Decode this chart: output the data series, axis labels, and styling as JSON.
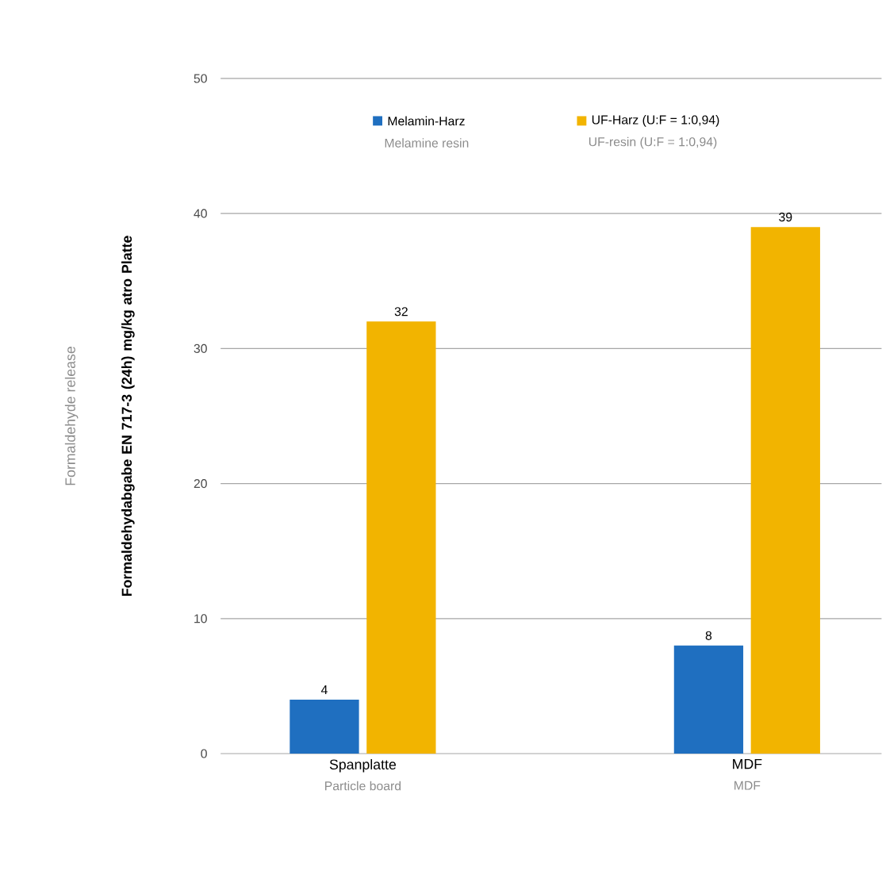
{
  "chart_data": {
    "type": "bar",
    "ylabel": "Formaldehydabgabe EN 717-3 (24h) mg/kg atro Platte",
    "categories": [
      "Spanplatte",
      "MDF"
    ],
    "series": [
      {
        "name": "Melamin-Harz",
        "color": "#1f6fc0",
        "values": [
          4,
          8
        ]
      },
      {
        "name": "UF-Harz (U:F = 1:0,94)",
        "color": "#f2b400",
        "values": [
          32,
          39
        ]
      }
    ],
    "annotations": [
      "Melamine resin",
      "UF-resin (U:F = 1:0,94)",
      "Particle board",
      "MDF",
      "Formaldehyde release"
    ],
    "ylim": [
      0,
      50
    ],
    "yticks": [
      0,
      10,
      20,
      30,
      40,
      50
    ],
    "grid": "y",
    "legend": "top",
    "data_labels": true
  }
}
